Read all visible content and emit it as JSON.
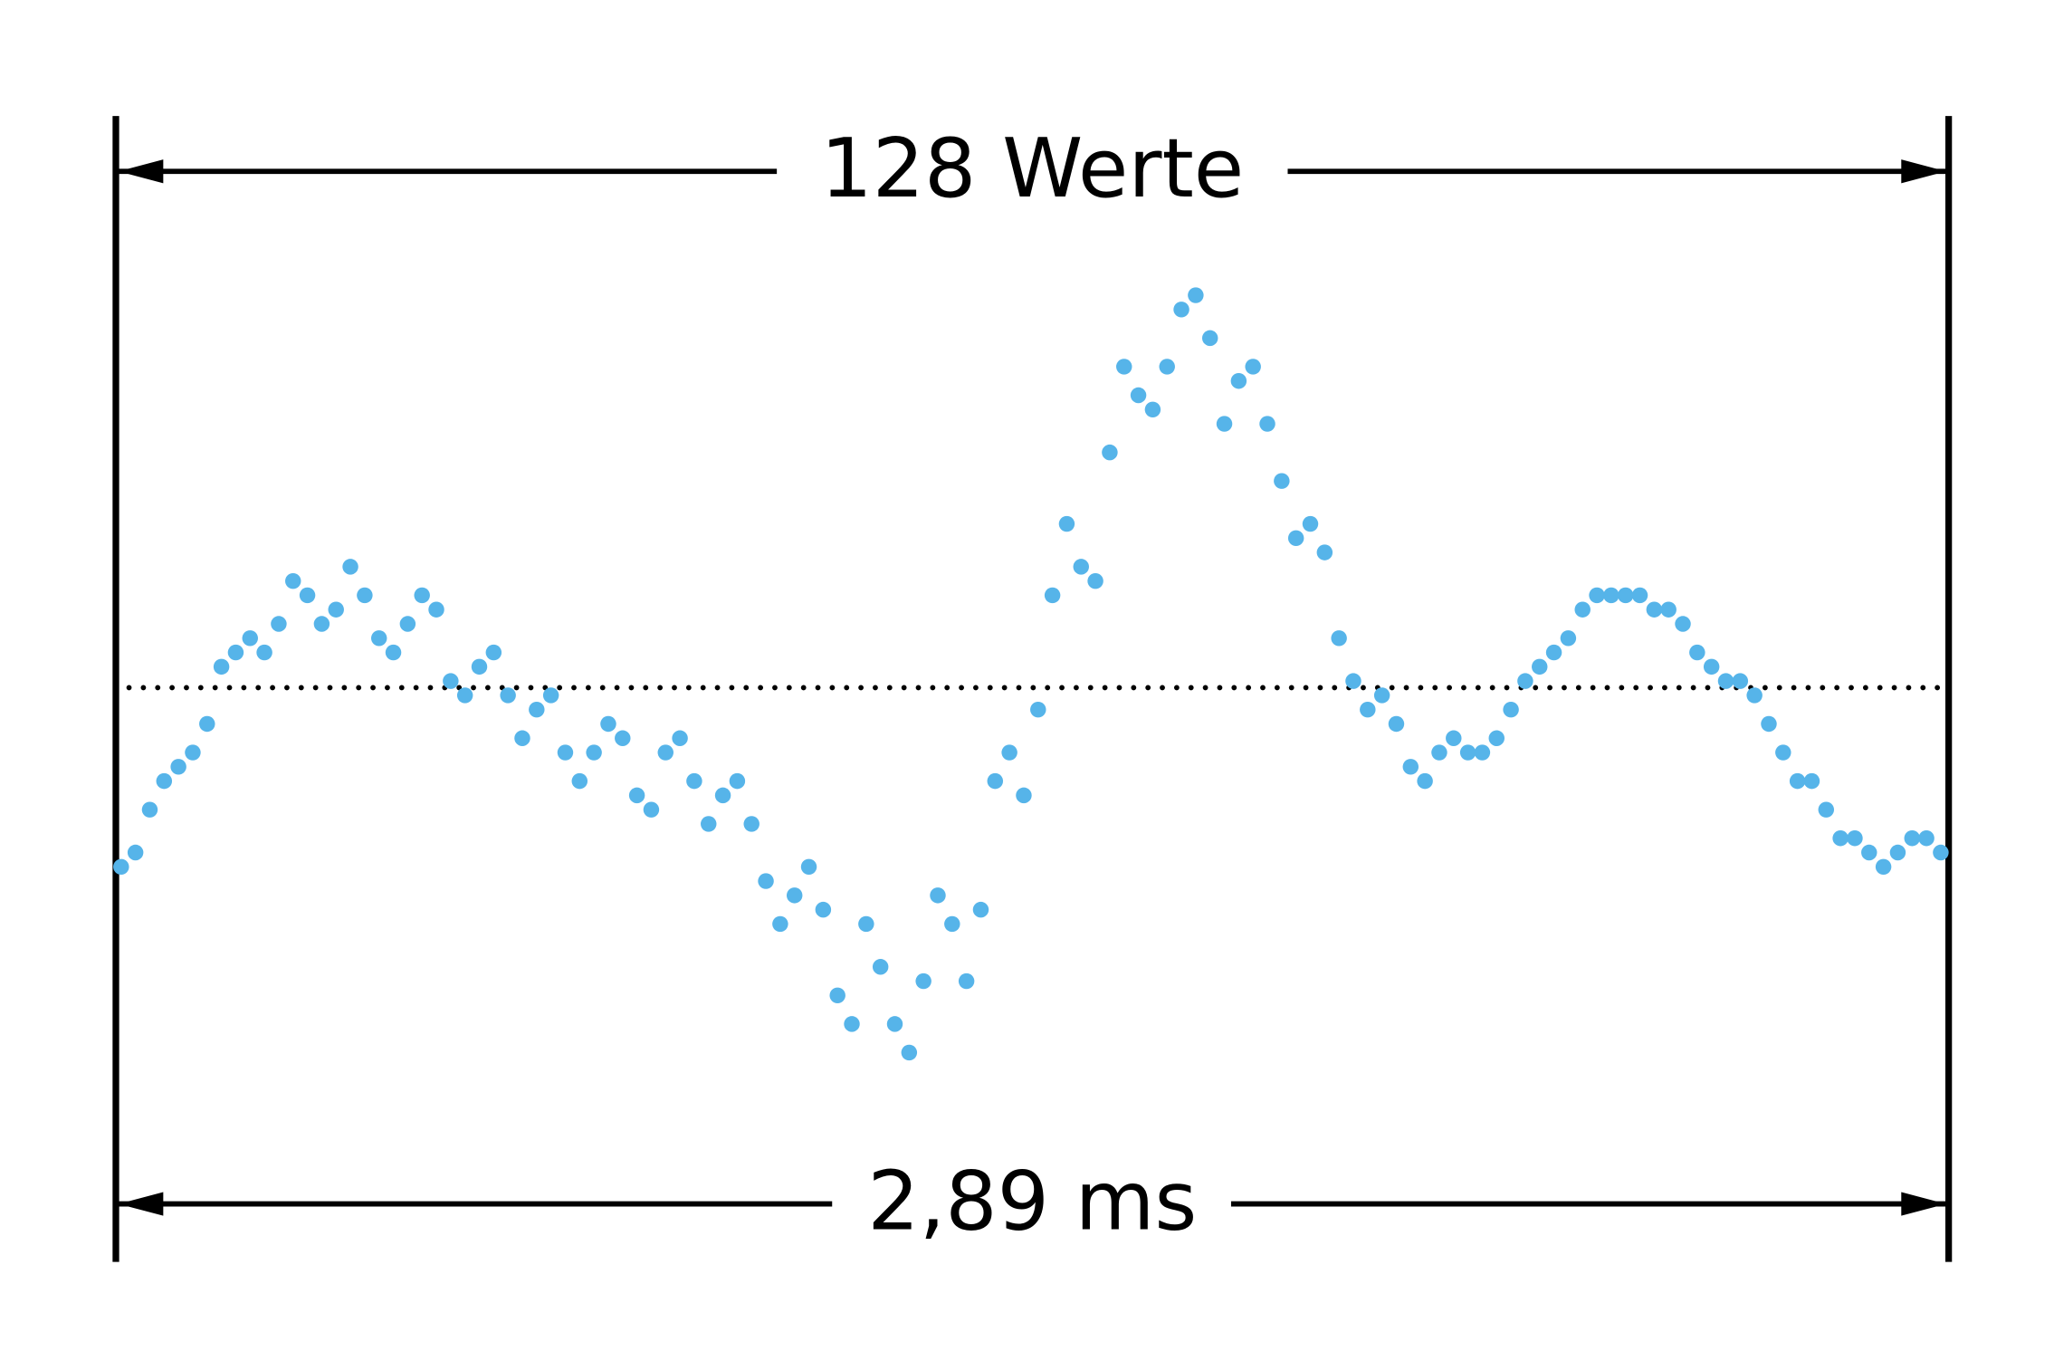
{
  "chart_data": {
    "type": "dot",
    "top_label": "128 Werte",
    "bottom_label": "2,89 ms",
    "color": "#56b4e9",
    "ylim": [
      -40,
      40
    ],
    "values": [
      -13,
      -12,
      -9,
      -7,
      -6,
      -5,
      -3,
      1,
      2,
      3,
      2,
      4,
      7,
      6,
      4,
      5,
      8,
      6,
      3,
      2,
      4,
      6,
      5,
      0,
      -1,
      1,
      2,
      -1,
      -4,
      -2,
      -1,
      -5,
      -7,
      -5,
      -3,
      -4,
      -8,
      -9,
      -5,
      -4,
      -7,
      -10,
      -8,
      -7,
      -10,
      -14,
      -17,
      -15,
      -13,
      -16,
      -22,
      -24,
      -17,
      -20,
      -24,
      -26,
      -21,
      -15,
      -17,
      -21,
      -16,
      -7,
      -5,
      -8,
      -2,
      6,
      11,
      8,
      7,
      16,
      22,
      20,
      19,
      22,
      26,
      27,
      24,
      18,
      21,
      22,
      18,
      14,
      10,
      11,
      9,
      3,
      0,
      -2,
      -1,
      -3,
      -6,
      -7,
      -5,
      -4,
      -5,
      -5,
      -4,
      -2,
      0,
      1,
      2,
      3,
      5,
      6,
      6,
      6,
      6,
      5,
      5,
      4,
      2,
      1,
      0,
      0,
      -1,
      -3,
      -5,
      -7,
      -7,
      -9,
      -11,
      -11,
      -12,
      -13,
      -12,
      -11,
      -11,
      -12
    ]
  }
}
